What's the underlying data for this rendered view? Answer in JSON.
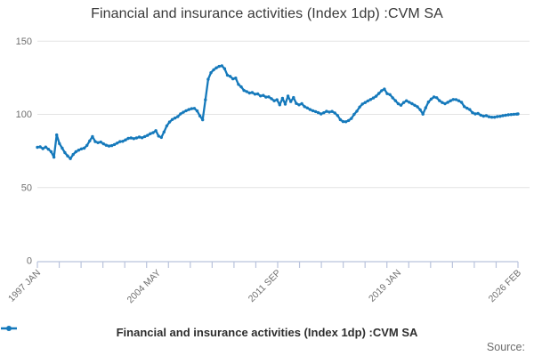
{
  "title": "Financial and insurance activities (Index 1dp) :CVM SA",
  "legend": {
    "series_label": "Financial and insurance activities (Index 1dp) :CVM SA"
  },
  "source": {
    "label": "Source:"
  },
  "colors": {
    "line": "#1579bb",
    "grid": "#e4e4e4",
    "axis": "#b9c3dc",
    "tick_label": "#6f6f6f",
    "title": "#393939",
    "legend_text": "#2e2e2e",
    "source_text": "#6c6c6c",
    "background": "#ffffff"
  },
  "chart_data": {
    "type": "line",
    "title": "Financial and insurance activities (Index 1dp) :CVM SA",
    "x_start": "1997 JAN",
    "x_end": "2026 FEB",
    "x_tick_labels": [
      "1997 JAN",
      "2004 MAY",
      "2011 SEP",
      "2019 JAN",
      "2026 FEB"
    ],
    "y_ticks": [
      0,
      50,
      100,
      150
    ],
    "ylim": [
      0,
      150
    ],
    "grid": "horizontal-only",
    "legend_position": "bottom-center",
    "series": [
      {
        "name": "Financial and insurance activities (Index 1dp) :CVM SA",
        "x_unit": "months since 1997 JAN",
        "points": [
          [
            0,
            77.5
          ],
          [
            2,
            77.8
          ],
          [
            4,
            76.6
          ],
          [
            6,
            77.7
          ],
          [
            8,
            76.2
          ],
          [
            10,
            74.5
          ],
          [
            12,
            70.8
          ],
          [
            14,
            86.0
          ],
          [
            16,
            80.0
          ],
          [
            18,
            76.9
          ],
          [
            20,
            73.9
          ],
          [
            22,
            71.6
          ],
          [
            24,
            69.8
          ],
          [
            26,
            72.6
          ],
          [
            28,
            74.5
          ],
          [
            30,
            75.6
          ],
          [
            32,
            76.4
          ],
          [
            34,
            76.9
          ],
          [
            36,
            78.8
          ],
          [
            38,
            81.9
          ],
          [
            40,
            84.9
          ],
          [
            42,
            81.4
          ],
          [
            44,
            80.7
          ],
          [
            46,
            81.1
          ],
          [
            48,
            79.9
          ],
          [
            50,
            78.9
          ],
          [
            52,
            78.4
          ],
          [
            54,
            78.7
          ],
          [
            56,
            79.4
          ],
          [
            58,
            80.4
          ],
          [
            60,
            81.4
          ],
          [
            62,
            81.6
          ],
          [
            64,
            82.6
          ],
          [
            66,
            83.6
          ],
          [
            68,
            83.9
          ],
          [
            70,
            83.4
          ],
          [
            72,
            83.9
          ],
          [
            74,
            84.5
          ],
          [
            76,
            84.0
          ],
          [
            78,
            84.9
          ],
          [
            80,
            85.7
          ],
          [
            82,
            86.8
          ],
          [
            84,
            87.5
          ],
          [
            86,
            88.9
          ],
          [
            88,
            85.2
          ],
          [
            90,
            84.3
          ],
          [
            92,
            88.0
          ],
          [
            94,
            92.2
          ],
          [
            96,
            94.8
          ],
          [
            98,
            96.5
          ],
          [
            100,
            97.5
          ],
          [
            102,
            98.5
          ],
          [
            104,
            100.4
          ],
          [
            106,
            101.5
          ],
          [
            108,
            102.5
          ],
          [
            110,
            103.3
          ],
          [
            112,
            103.9
          ],
          [
            114,
            104.1
          ],
          [
            116,
            102.4
          ],
          [
            118,
            99.0
          ],
          [
            120,
            96.3
          ],
          [
            122,
            110.0
          ],
          [
            124,
            124.0
          ],
          [
            126,
            128.5
          ],
          [
            128,
            130.5
          ],
          [
            130,
            131.8
          ],
          [
            132,
            132.8
          ],
          [
            134,
            133.2
          ],
          [
            136,
            131.2
          ],
          [
            138,
            126.8
          ],
          [
            140,
            126.0
          ],
          [
            142,
            124.3
          ],
          [
            144,
            124.8
          ],
          [
            146,
            120.5
          ],
          [
            148,
            118.8
          ],
          [
            150,
            116.4
          ],
          [
            152,
            115.6
          ],
          [
            154,
            114.6
          ],
          [
            156,
            114.9
          ],
          [
            158,
            113.8
          ],
          [
            160,
            114.0
          ],
          [
            162,
            112.6
          ],
          [
            164,
            113.0
          ],
          [
            166,
            111.8
          ],
          [
            168,
            112.0
          ],
          [
            170,
            110.7
          ],
          [
            172,
            109.3
          ],
          [
            174,
            110.0
          ],
          [
            176,
            106.5
          ],
          [
            178,
            111.0
          ],
          [
            180,
            107.0
          ],
          [
            182,
            112.5
          ],
          [
            184,
            108.8
          ],
          [
            186,
            111.5
          ],
          [
            188,
            107.5
          ],
          [
            190,
            106.5
          ],
          [
            192,
            107.3
          ],
          [
            194,
            105.3
          ],
          [
            196,
            104.4
          ],
          [
            198,
            103.3
          ],
          [
            200,
            102.5
          ],
          [
            202,
            101.9
          ],
          [
            204,
            101.2
          ],
          [
            206,
            100.3
          ],
          [
            208,
            101.1
          ],
          [
            210,
            102.1
          ],
          [
            212,
            101.6
          ],
          [
            214,
            102.0
          ],
          [
            216,
            101.0
          ],
          [
            218,
            99.2
          ],
          [
            220,
            96.4
          ],
          [
            222,
            95.1
          ],
          [
            224,
            95.0
          ],
          [
            226,
            95.8
          ],
          [
            228,
            97.2
          ],
          [
            230,
            100.0
          ],
          [
            232,
            102.2
          ],
          [
            234,
            105.0
          ],
          [
            236,
            107.1
          ],
          [
            238,
            108.1
          ],
          [
            240,
            109.2
          ],
          [
            242,
            110.2
          ],
          [
            244,
            111.2
          ],
          [
            246,
            112.4
          ],
          [
            248,
            114.3
          ],
          [
            250,
            116.2
          ],
          [
            252,
            117.3
          ],
          [
            254,
            114.2
          ],
          [
            256,
            113.5
          ],
          [
            258,
            111.3
          ],
          [
            260,
            109.4
          ],
          [
            262,
            107.3
          ],
          [
            264,
            106.3
          ],
          [
            266,
            108.1
          ],
          [
            268,
            109.3
          ],
          [
            270,
            108.3
          ],
          [
            272,
            107.3
          ],
          [
            274,
            106.2
          ],
          [
            276,
            105.2
          ],
          [
            278,
            103.2
          ],
          [
            280,
            100.2
          ],
          [
            282,
            104.5
          ],
          [
            284,
            108.5
          ],
          [
            286,
            110.5
          ],
          [
            288,
            111.9
          ],
          [
            290,
            111.4
          ],
          [
            292,
            109.4
          ],
          [
            294,
            108.1
          ],
          [
            296,
            107.3
          ],
          [
            298,
            108.2
          ],
          [
            300,
            109.3
          ],
          [
            302,
            110.2
          ],
          [
            304,
            110.1
          ],
          [
            306,
            109.3
          ],
          [
            308,
            108.2
          ],
          [
            310,
            105.3
          ],
          [
            312,
            104.2
          ],
          [
            314,
            103.3
          ],
          [
            316,
            101.2
          ],
          [
            318,
            100.3
          ],
          [
            320,
            100.6
          ],
          [
            322,
            99.5
          ],
          [
            324,
            98.8
          ],
          [
            326,
            99.1
          ],
          [
            328,
            98.4
          ],
          [
            330,
            98.1
          ],
          [
            332,
            98.1
          ],
          [
            334,
            98.5
          ],
          [
            336,
            98.7
          ],
          [
            338,
            99.1
          ],
          [
            340,
            99.4
          ],
          [
            342,
            99.7
          ],
          [
            344,
            99.9
          ],
          [
            346,
            100.1
          ],
          [
            348,
            100.2
          ],
          [
            349,
            100.3
          ]
        ]
      }
    ]
  }
}
